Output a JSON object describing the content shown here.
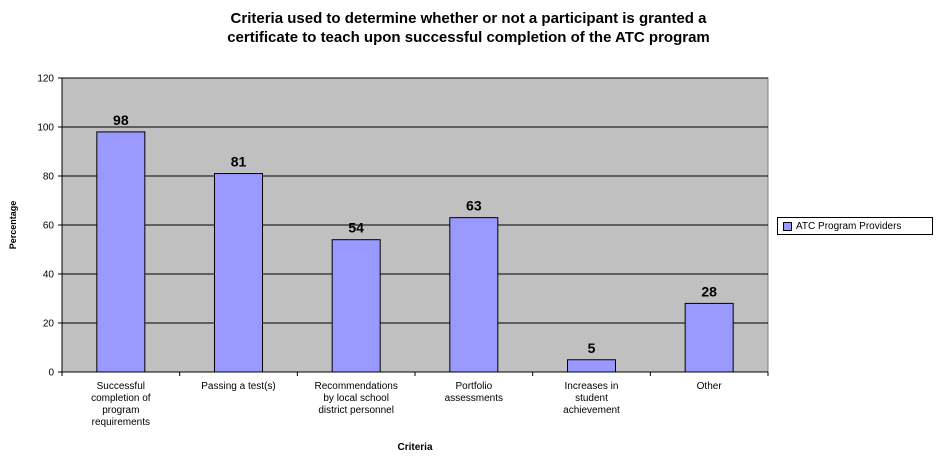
{
  "chart_data": {
    "type": "bar",
    "title": "Criteria used to determine whether or not a participant is granted a certificate to teach upon successful completion of the ATC program",
    "title_lines": [
      "Criteria used to determine whether or not a participant is granted a",
      "certificate to teach upon successful completion of the ATC program"
    ],
    "xlabel": "Criteria",
    "ylabel": "Percentage",
    "ylim": [
      0,
      120
    ],
    "yticks": [
      0,
      20,
      40,
      60,
      80,
      100,
      120
    ],
    "grid": true,
    "legend_position": "right",
    "categories": [
      "Successful completion of program requirements",
      "Passing a test(s)",
      "Recommendations by local school district personnel",
      "Portfolio assessments",
      "Increases in student achievement",
      "Other"
    ],
    "category_label_lines": [
      [
        "Successful",
        "completion of",
        "program",
        "requirements"
      ],
      [
        "Passing a test(s)"
      ],
      [
        "Recommendations",
        "by local school",
        "district personnel"
      ],
      [
        "Portfolio",
        "assessments"
      ],
      [
        "Increases in",
        "student",
        "achievement"
      ],
      [
        "Other"
      ]
    ],
    "series": [
      {
        "name": "ATC Program Providers",
        "values": [
          98,
          81,
          54,
          63,
          5,
          28
        ]
      }
    ],
    "colors": {
      "plot_background": "#c0c0c0",
      "bar_fill": "#9999ff",
      "bar_stroke": "#000000",
      "gridline": "#000000"
    }
  }
}
